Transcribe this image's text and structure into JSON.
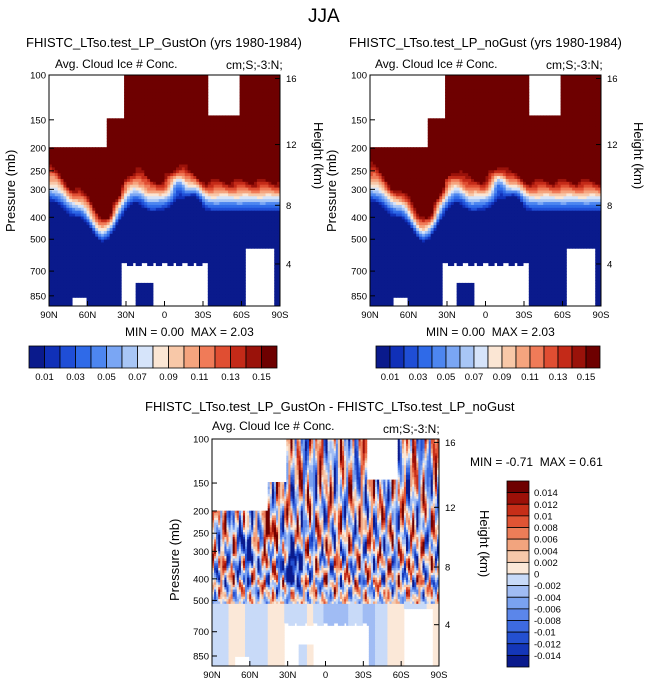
{
  "page": {
    "main_title": "JJA"
  },
  "colors": {
    "base_cmap": [
      "#0a1a8c",
      "#1030b8",
      "#1f4ed6",
      "#2f6ae8",
      "#4d86f0",
      "#7aa6f4",
      "#a8c6f6",
      "#d6e4fa",
      "#fbe6d4",
      "#f8c8a8",
      "#f5a47e",
      "#f07b58",
      "#e04e32",
      "#c42a18",
      "#9a120a",
      "#6e0000"
    ],
    "diff_cmap": [
      "#0a1a8c",
      "#1436b8",
      "#2450d0",
      "#3d6ae0",
      "#5b86ea",
      "#7aa2f0",
      "#a0bcf4",
      "#c8daf8",
      "#fbe8d8",
      "#f6c8aa",
      "#f2a47e",
      "#ec7d58",
      "#e05434",
      "#c62e18",
      "#9c1008",
      "#6e0000"
    ],
    "missing": "#ffffff"
  },
  "chart_data": [
    {
      "type": "heatmap",
      "title": "FHISTC_LTso.test_LP_GustOn (yrs 1980-1984)",
      "subtitle_left": "Avg. Cloud Ice # Conc.",
      "subtitle_right": "cm;S;-3:N;",
      "xlabel": "",
      "ylabel": "Pressure (mb)",
      "ylabel_right": "Height (km)",
      "x_ticks": [
        "90N",
        "60N",
        "30N",
        "0",
        "30S",
        "60S",
        "90S"
      ],
      "y_ticks": [
        "100",
        "150",
        "200",
        "250",
        "300",
        "400",
        "500",
        "700",
        "850"
      ],
      "y_ticks_right": [
        "16",
        "12",
        "8",
        "4"
      ],
      "stats": {
        "min_label": "MIN =",
        "min": "0.00",
        "max_label": "MAX =",
        "max": "2.03"
      },
      "colorbar_labels": [
        "0.01",
        "0.03",
        "0.05",
        "0.07",
        "0.09",
        "0.11",
        "0.13",
        "0.15"
      ],
      "ylim": [
        100,
        900
      ],
      "xlim": [
        90,
        -90
      ]
    },
    {
      "type": "heatmap",
      "title": "FHISTC_LTso.test_LP_noGust (yrs 1980-1984)",
      "subtitle_left": "Avg. Cloud Ice # Conc.",
      "subtitle_right": "cm;S;-3:N;",
      "xlabel": "",
      "ylabel": "Pressure (mb)",
      "ylabel_right": "Height (km)",
      "x_ticks": [
        "90N",
        "60N",
        "30N",
        "0",
        "30S",
        "60S",
        "90S"
      ],
      "y_ticks": [
        "100",
        "150",
        "200",
        "250",
        "300",
        "400",
        "500",
        "700",
        "850"
      ],
      "y_ticks_right": [
        "16",
        "12",
        "8",
        "4"
      ],
      "stats": {
        "min_label": "MIN =",
        "min": "0.00",
        "max_label": "MAX =",
        "max": "2.03"
      },
      "colorbar_labels": [
        "0.01",
        "0.03",
        "0.05",
        "0.07",
        "0.09",
        "0.11",
        "0.13",
        "0.15"
      ],
      "ylim": [
        100,
        900
      ],
      "xlim": [
        90,
        -90
      ]
    },
    {
      "type": "heatmap",
      "title": "FHISTC_LTso.test_LP_GustOn - FHISTC_LTso.test_LP_noGust",
      "subtitle_left": "Avg. Cloud Ice # Conc.",
      "subtitle_right": "cm;S;-3:N;",
      "xlabel": "",
      "ylabel": "Pressure (mb)",
      "ylabel_right": "Height (km)",
      "x_ticks": [
        "90N",
        "60N",
        "30N",
        "0",
        "30S",
        "60S",
        "90S"
      ],
      "y_ticks": [
        "100",
        "150",
        "200",
        "250",
        "300",
        "400",
        "500",
        "700",
        "850"
      ],
      "y_ticks_right": [
        "16",
        "12",
        "8",
        "4"
      ],
      "stats": {
        "min_label": "MIN =",
        "min": "-0.71",
        "max_label": "MAX =",
        "max": "0.61"
      },
      "colorbar_labels": [
        "0.014",
        "0.012",
        "0.01",
        "0.008",
        "0.006",
        "0.004",
        "0.002",
        "0",
        "-0.002",
        "-0.004",
        "-0.006",
        "-0.008",
        "-0.01",
        "-0.012",
        "-0.014"
      ],
      "ylim": [
        100,
        900
      ],
      "xlim": [
        90,
        -90
      ]
    }
  ]
}
